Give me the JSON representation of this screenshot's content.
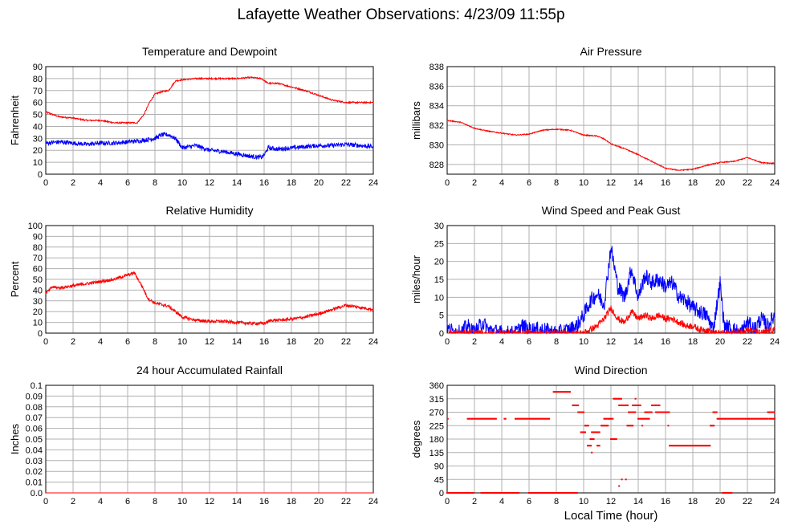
{
  "page_title": "Lafayette Weather Observations: 4/23/09 11:55p",
  "global_xlabel": "Local Time (hour)",
  "colors": {
    "red": "#ff0000",
    "blue": "#0000ff",
    "grid": "#b0b0b0",
    "axis": "#000000"
  },
  "chart_data": [
    {
      "id": "temp",
      "type": "line",
      "title": "Temperature and Dewpoint",
      "ylabel": "Fahrenheit",
      "xlim": [
        0,
        24
      ],
      "ylim": [
        0,
        90
      ],
      "xticks": [
        0,
        2,
        4,
        6,
        8,
        10,
        12,
        14,
        16,
        18,
        20,
        22,
        24
      ],
      "yticks": [
        0,
        10,
        20,
        30,
        40,
        50,
        60,
        70,
        80,
        90
      ],
      "series": [
        {
          "color": "#ff0000",
          "noise": 0.6,
          "x": [
            0,
            1,
            2,
            3,
            4,
            5,
            6,
            6.7,
            7.2,
            7.6,
            8,
            8.5,
            9,
            9.5,
            10,
            11,
            12,
            13,
            14,
            15,
            15.8,
            16.3,
            17,
            18,
            19,
            20,
            21,
            22,
            23,
            24
          ],
          "y": [
            52,
            48,
            47,
            45,
            45,
            43,
            43,
            43,
            50,
            60,
            67,
            69,
            70,
            78,
            79,
            80,
            80,
            80,
            80,
            81,
            80,
            76,
            76,
            73,
            70,
            66,
            62,
            60,
            60,
            60
          ]
        },
        {
          "color": "#0000ff",
          "noise": 1.8,
          "x": [
            0,
            1,
            2,
            3,
            4,
            5,
            6,
            7,
            8,
            8.5,
            9,
            9.5,
            10,
            10.5,
            11,
            12,
            13,
            14,
            15,
            15.8,
            16,
            16.3,
            17,
            18,
            19,
            20,
            21,
            22,
            23,
            24
          ],
          "y": [
            26,
            27,
            26,
            25,
            26,
            26,
            27,
            28,
            30,
            33,
            33,
            30,
            22,
            23,
            24,
            20,
            19,
            17,
            15,
            14,
            16,
            22,
            21,
            22,
            23,
            24,
            24,
            25,
            24,
            23
          ]
        }
      ]
    },
    {
      "id": "pressure",
      "type": "line",
      "title": "Air Pressure",
      "ylabel": "millibars",
      "xlim": [
        0,
        24
      ],
      "ylim": [
        827,
        838
      ],
      "xticks": [
        0,
        2,
        4,
        6,
        8,
        10,
        12,
        14,
        16,
        18,
        20,
        22,
        24
      ],
      "yticks": [
        828,
        830,
        832,
        834,
        836,
        838
      ],
      "series": [
        {
          "color": "#ff0000",
          "noise": 0.05,
          "x": [
            0,
            1,
            2,
            3,
            4,
            5,
            6,
            7,
            8,
            9,
            10,
            11,
            11.5,
            12,
            13,
            14,
            15,
            16,
            17,
            18,
            19,
            20,
            21,
            22,
            23,
            24
          ],
          "y": [
            832.5,
            832.3,
            831.7,
            831.4,
            831.2,
            831.0,
            831.1,
            831.5,
            831.6,
            831.5,
            831.0,
            830.9,
            830.6,
            830.1,
            829.6,
            829.0,
            828.3,
            827.6,
            827.4,
            827.5,
            827.9,
            828.2,
            828.3,
            828.7,
            828.2,
            828.1
          ]
        }
      ]
    },
    {
      "id": "humidity",
      "type": "line",
      "title": "Relative Humidity",
      "ylabel": "Percent",
      "xlim": [
        0,
        24
      ],
      "ylim": [
        0,
        100
      ],
      "xticks": [
        0,
        2,
        4,
        6,
        8,
        10,
        12,
        14,
        16,
        18,
        20,
        22,
        24
      ],
      "yticks": [
        0,
        10,
        20,
        30,
        40,
        50,
        60,
        70,
        80,
        90,
        100
      ],
      "series": [
        {
          "color": "#ff0000",
          "noise": 1.4,
          "x": [
            0,
            0.5,
            1,
            2,
            3,
            4,
            5,
            6,
            6.5,
            7,
            7.5,
            8,
            9,
            10,
            11,
            12,
            13,
            14,
            15,
            16,
            16.5,
            17,
            18,
            19,
            20,
            21,
            22,
            23,
            24
          ],
          "y": [
            37,
            43,
            42,
            44,
            46,
            48,
            50,
            54,
            56,
            45,
            32,
            28,
            25,
            15,
            12,
            11,
            11,
            10,
            9,
            9,
            12,
            12,
            13,
            15,
            18,
            22,
            26,
            24,
            22
          ]
        }
      ]
    },
    {
      "id": "wind",
      "type": "line",
      "title": "Wind Speed and Peak Gust",
      "ylabel": "miles/hour",
      "xlim": [
        0,
        24
      ],
      "ylim": [
        0,
        30
      ],
      "xticks": [
        0,
        2,
        4,
        6,
        8,
        10,
        12,
        14,
        16,
        18,
        20,
        22,
        24
      ],
      "yticks": [
        0,
        5,
        10,
        15,
        20,
        25,
        30
      ],
      "series": [
        {
          "color": "#0000ff",
          "noise": 2.2,
          "x": [
            0,
            1,
            1.5,
            2,
            2.6,
            3,
            4,
            5,
            5.5,
            6,
            7,
            8,
            9,
            9.5,
            10,
            10.5,
            11,
            11.5,
            12,
            12.5,
            13,
            13.5,
            14,
            14.5,
            15,
            15.5,
            16,
            16.5,
            17,
            17.5,
            18,
            18.5,
            19,
            19.5,
            20,
            20.3,
            21,
            21.5,
            22,
            22.5,
            23,
            23.5,
            24
          ],
          "y": [
            1,
            0,
            2,
            0,
            3,
            1,
            0,
            0,
            2,
            1,
            1,
            0,
            1,
            2,
            5,
            9,
            11,
            8,
            24,
            13,
            10,
            18,
            10,
            16,
            14,
            15,
            13,
            14,
            10,
            9,
            7,
            6,
            5,
            1,
            14,
            2,
            1,
            0,
            3,
            1,
            4,
            2,
            5
          ]
        },
        {
          "color": "#ff0000",
          "noise": 0.9,
          "x": [
            0,
            9,
            10,
            10.5,
            11,
            11.5,
            12,
            12.5,
            13,
            13.5,
            14,
            14.5,
            15,
            15.5,
            16,
            16.5,
            17,
            17.5,
            18,
            18.5,
            19,
            19.5,
            20,
            21,
            22,
            23,
            24
          ],
          "y": [
            0,
            0,
            0,
            1,
            2,
            4,
            7,
            4,
            3,
            6,
            4,
            5,
            4,
            5,
            4,
            4,
            3,
            2,
            2,
            1,
            1,
            0,
            0,
            0,
            1,
            0,
            1
          ]
        }
      ]
    },
    {
      "id": "rain",
      "type": "line",
      "title": "24 hour Accumulated Rainfall",
      "ylabel": "Inches",
      "xlim": [
        0,
        24
      ],
      "ylim": [
        0,
        0.1
      ],
      "xticks": [
        0,
        2,
        4,
        6,
        8,
        10,
        12,
        14,
        16,
        18,
        20,
        22,
        24
      ],
      "yticks": [
        0.0,
        0.01,
        0.02,
        0.03,
        0.04,
        0.05,
        0.06,
        0.07,
        0.08,
        0.09,
        0.1
      ],
      "yticklabels": [
        "0.0",
        "0.01",
        "0.02",
        "0.03",
        "0.04",
        "0.05",
        "0.06",
        "0.07",
        "0.08",
        "0.09",
        "0.1"
      ],
      "series": [
        {
          "color": "#ff0000",
          "noise": 0,
          "x": [
            0,
            24
          ],
          "y": [
            0,
            0
          ]
        }
      ]
    },
    {
      "id": "winddir",
      "type": "scatter",
      "title": "Wind Direction",
      "ylabel": "degrees",
      "xlim": [
        0,
        24
      ],
      "ylim": [
        0,
        360
      ],
      "xticks": [
        0,
        2,
        4,
        6,
        8,
        10,
        12,
        14,
        16,
        18,
        20,
        22,
        24
      ],
      "yticks": [
        0,
        45,
        90,
        135,
        180,
        225,
        270,
        315,
        360
      ],
      "series": [
        {
          "color": "#ff0000",
          "segments": [
            [
              0.0,
              2.0,
              0
            ],
            [
              1.5,
              3.6,
              248
            ],
            [
              2.5,
              4.2,
              0
            ],
            [
              4.2,
              4.3,
              248
            ],
            [
              4.2,
              5.3,
              0
            ],
            [
              5.0,
              7.5,
              248
            ],
            [
              6.0,
              9.6,
              0
            ],
            [
              7.8,
              9.0,
              338
            ],
            [
              9.2,
              9.6,
              293
            ],
            [
              9.6,
              10.0,
              270
            ],
            [
              9.8,
              10.2,
              203
            ],
            [
              10.1,
              10.4,
              225
            ],
            [
              10.3,
              10.6,
              158
            ],
            [
              10.5,
              10.8,
              180
            ],
            [
              10.6,
              11.2,
              203
            ],
            [
              11.0,
              11.2,
              158
            ],
            [
              11.3,
              11.8,
              225
            ],
            [
              11.5,
              12.2,
              248
            ],
            [
              12.0,
              12.4,
              180
            ],
            [
              12.2,
              12.8,
              315
            ],
            [
              12.6,
              13.3,
              293
            ],
            [
              13.2,
              13.6,
              225
            ],
            [
              13.3,
              13.8,
              270
            ],
            [
              13.6,
              14.2,
              293
            ],
            [
              14.0,
              14.8,
              248
            ],
            [
              14.5,
              15.0,
              270
            ],
            [
              15.0,
              15.6,
              293
            ],
            [
              15.3,
              16.3,
              270
            ],
            [
              16.3,
              19.3,
              158
            ],
            [
              19.3,
              19.6,
              225
            ],
            [
              19.5,
              19.8,
              270
            ],
            [
              19.8,
              23.5,
              248
            ],
            [
              20.2,
              20.9,
              0
            ],
            [
              23.5,
              24.0,
              270
            ],
            [
              23.6,
              24.0,
              248
            ]
          ],
          "points": [
            [
              0.05,
              248
            ],
            [
              10.6,
              135
            ],
            [
              11.9,
              248
            ],
            [
              12.6,
              23
            ],
            [
              12.8,
              45
            ],
            [
              13.1,
              45
            ],
            [
              13.8,
              315
            ],
            [
              14.3,
              225
            ],
            [
              16.2,
              225
            ],
            [
              9.3,
              293
            ],
            [
              22.1,
              248
            ]
          ]
        }
      ]
    }
  ]
}
